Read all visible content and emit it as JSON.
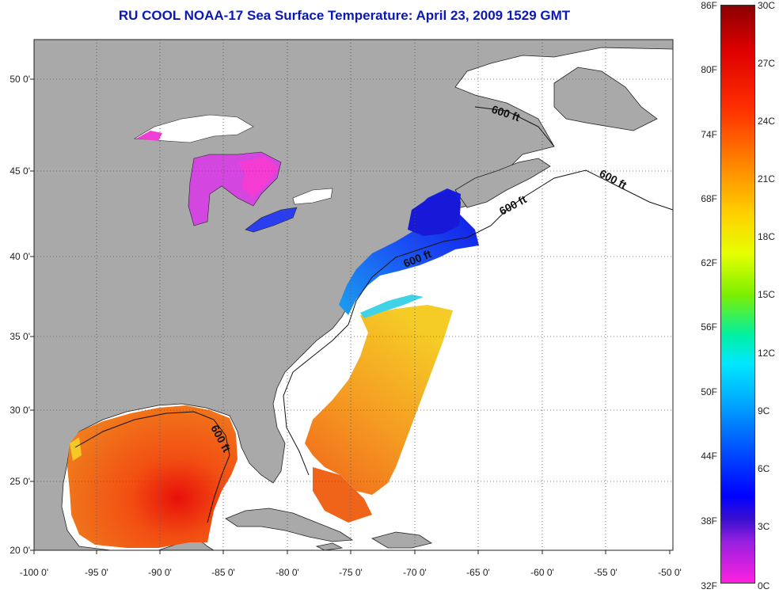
{
  "title": "RU COOL  NOAA-17  Sea Surface Temperature:  April 23, 2009 1529 GMT",
  "axes": {
    "x_ticks": [
      "-100 0'",
      "-95 0'",
      "-90 0'",
      "-85 0'",
      "-80 0'",
      "-75 0'",
      "-70 0'",
      "-65 0'",
      "-60 0'",
      "-55 0'",
      "-50 0'"
    ],
    "y_ticks": [
      "50 0'",
      "45 0'",
      "40 0'",
      "35 0'",
      "30 0'",
      "25 0'",
      "20 0'"
    ],
    "lon_range": [
      -100,
      -50
    ],
    "lat_range": [
      20,
      52.5
    ],
    "grid": "dotted"
  },
  "contour_labels": [
    "600 ft",
    "600 ft",
    "600 ft",
    "600 ft",
    "600 ft"
  ],
  "colorbar": {
    "fahrenheit_ticks": [
      "86F",
      "80F",
      "74F",
      "68F",
      "62F",
      "56F",
      "50F",
      "44F",
      "38F",
      "32F"
    ],
    "celsius_ticks": [
      "30C",
      "27C",
      "24C",
      "21C",
      "18C",
      "15C",
      "12C",
      "9C",
      "6C",
      "3C",
      "0C"
    ],
    "range_c": [
      0,
      30
    ],
    "range_f": [
      32,
      86
    ]
  },
  "colors": {
    "land": "#a9a9a9",
    "cloud": "#ffffff",
    "title": "#0b18b8"
  }
}
